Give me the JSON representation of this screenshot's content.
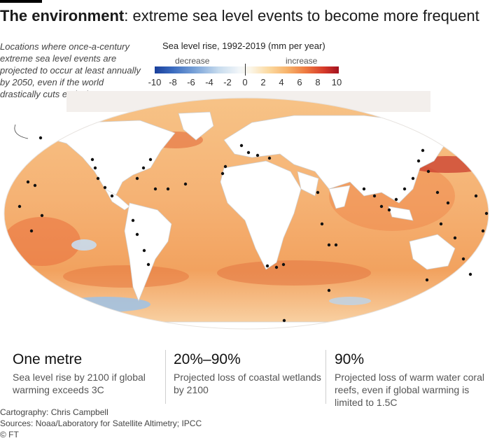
{
  "title": {
    "bold": "The environment",
    "rest": ": extreme sea level events to become more frequent"
  },
  "annotation": "Locations where once-a-century extreme sea level events are projected to occur at least annually by 2050, even if the world drastically cuts emissions",
  "legend": {
    "title": "Sea level rise, 1992-2019 (mm per year)",
    "decrease_label": "decrease",
    "increase_label": "increase",
    "ticks": [
      "-10",
      "-8",
      "-6",
      "-4",
      "-2",
      "0",
      "2",
      "4",
      "6",
      "8",
      "10"
    ],
    "colors": {
      "low": "#1a3f9b",
      "neutral": "#f2f6f9",
      "mid": "#f7b36b",
      "high": "#a2121f",
      "land": "#ffffff",
      "points": "#111111"
    }
  },
  "stats": [
    {
      "headline": "One metre",
      "description": "Sea level rise by 2100 if global warming exceeds 3C"
    },
    {
      "headline": "20%–90%",
      "description": "Projected loss of coastal wetlands by 2100"
    },
    {
      "headline": "90%",
      "description": "Projected loss of warm water coral reefs, even if global warming is limited to 1.5C"
    }
  ],
  "footer": {
    "cartography": "Cartography: Chris Campbell",
    "sources": "Sources: Noaa/Laboratory for Satellite Altimetry; IPCC",
    "copyright": "© FT"
  }
}
